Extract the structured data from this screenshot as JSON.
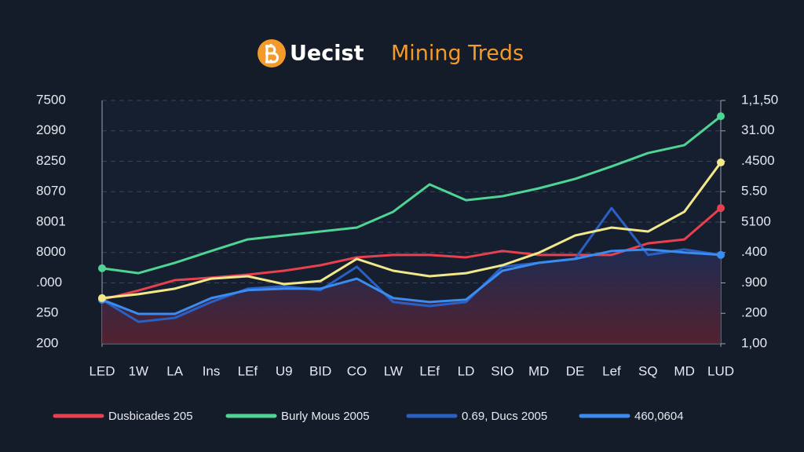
{
  "chart_data": {
    "type": "line",
    "title": {
      "brand": "Uecist",
      "text": "Mining Treds"
    },
    "categories": [
      "LED",
      "1W",
      "LA",
      "Ins",
      "LEf",
      "U9",
      "BID",
      "CO",
      "LW",
      "LEf",
      "LD",
      "SIO",
      "MD",
      "DE",
      "Lef",
      "SQ",
      "MD",
      "LUD"
    ],
    "series": [
      {
        "name": "Dusbicades 205",
        "color": "#e8404f",
        "values": [
          1.45,
          1.75,
          2.09,
          2.17,
          2.27,
          2.4,
          2.58,
          2.84,
          2.92,
          2.92,
          2.84,
          3.05,
          2.92,
          2.92,
          2.92,
          3.3,
          3.43,
          4.46
        ]
      },
      {
        "name": "Burly Mous 2005",
        "color": "#4fd494",
        "values": [
          2.48,
          2.32,
          2.66,
          3.05,
          3.43,
          3.56,
          3.69,
          3.82,
          4.34,
          5.24,
          4.72,
          4.85,
          5.11,
          5.42,
          5.83,
          6.27,
          6.53,
          7.48
        ]
      },
      {
        "name": "0.69, Ducs 2005",
        "color": "#2a5fc4",
        "values": [
          1.45,
          0.72,
          0.85,
          1.37,
          1.81,
          1.89,
          1.76,
          2.53,
          1.37,
          1.24,
          1.37,
          2.53,
          2.66,
          2.79,
          4.46,
          2.92,
          3.1,
          2.92
        ]
      },
      {
        "name": "460,0604",
        "color": "#3a8cf0",
        "values": [
          1.45,
          0.98,
          0.98,
          1.5,
          1.76,
          1.81,
          1.81,
          2.14,
          1.5,
          1.37,
          1.45,
          2.4,
          2.66,
          2.79,
          3.05,
          3.1,
          3.0,
          2.92
        ]
      },
      {
        "color": "#f2e88a",
        "values": [
          1.5,
          1.63,
          1.81,
          2.14,
          2.22,
          1.96,
          2.06,
          2.79,
          2.4,
          2.22,
          2.32,
          2.58,
          2.99,
          3.56,
          3.82,
          3.69,
          4.34,
          5.96
        ]
      }
    ],
    "ylim": [
      0,
      8
    ],
    "yticks": [
      {
        "value": 8,
        "label": "7500"
      },
      {
        "value": 7,
        "label": "2090"
      },
      {
        "value": 6,
        "label": "8250"
      },
      {
        "value": 5,
        "label": "8070"
      },
      {
        "value": 4,
        "label": "8001"
      },
      {
        "value": 3,
        "label": "8000"
      },
      {
        "value": 2,
        "label": ".000"
      },
      {
        "value": 1,
        "label": "250"
      },
      {
        "value": 0,
        "label": "200"
      }
    ],
    "y2lim": [
      0,
      8
    ],
    "y2ticks": [
      {
        "value": 8,
        "label": "1,1,50"
      },
      {
        "value": 7,
        "label": "31.00"
      },
      {
        "value": 6,
        "label": ".4500"
      },
      {
        "value": 5,
        "label": "5.50"
      },
      {
        "value": 4,
        "label": "5100"
      },
      {
        "value": 3,
        "label": ".400"
      },
      {
        "value": 2,
        "label": ".900"
      },
      {
        "value": 1,
        "label": ".200"
      },
      {
        "value": 0,
        "label": "1,00"
      }
    ],
    "grid": true
  }
}
